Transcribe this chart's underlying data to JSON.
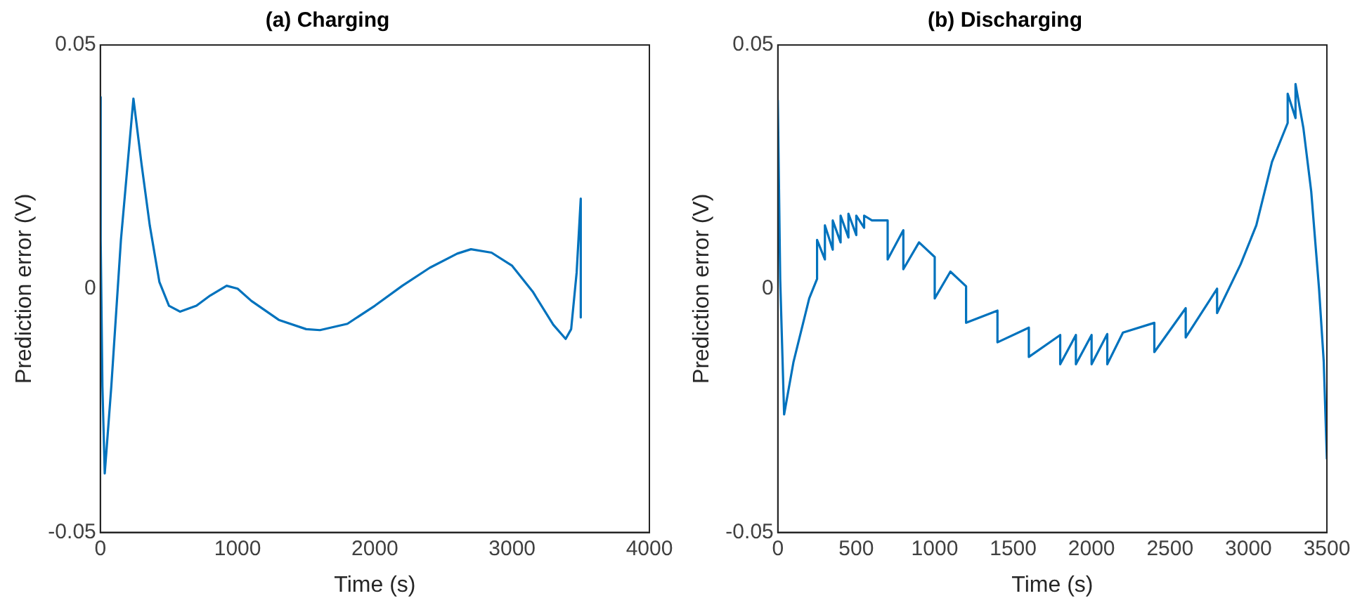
{
  "chart_data": [
    {
      "type": "line",
      "title": "(a) Charging",
      "xlabel": "Time (s)",
      "ylabel": "Prediction error (V)",
      "color": "#0072bd",
      "x": [
        0,
        0,
        5,
        15,
        32,
        80,
        150,
        241,
        300,
        360,
        430,
        500,
        580,
        700,
        800,
        920,
        1000,
        1100,
        1300,
        1500,
        1600,
        1800,
        2000,
        2200,
        2400,
        2600,
        2700,
        2850,
        3000,
        3150,
        3300,
        3390,
        3430,
        3470,
        3500,
        3500
      ],
      "values": [
        0.0393,
        -0.003,
        0.01,
        -0.02,
        -0.0379,
        -0.02,
        0.01,
        0.039,
        0.0256,
        0.013,
        0.0014,
        -0.0035,
        -0.0047,
        -0.0035,
        -0.0014,
        0.0006,
        0,
        -0.0025,
        -0.0064,
        -0.0083,
        -0.0085,
        -0.0072,
        -0.0035,
        0.0006,
        0.0043,
        0.0072,
        0.0081,
        0.0074,
        0.0047,
        -0.0006,
        -0.0074,
        -0.0103,
        -0.0083,
        0.0033,
        0.0185,
        -0.0059
      ],
      "xlim": [
        0,
        4000
      ],
      "xticks": [
        0,
        1000,
        2000,
        3000,
        4000
      ],
      "ylim": [
        -0.05,
        0.05
      ],
      "yticks": [
        -0.05,
        0,
        0.05
      ]
    },
    {
      "type": "line",
      "title": "(b) Discharging",
      "xlabel": "Time (s)",
      "ylabel": "Prediction error (V)",
      "color": "#0072bd",
      "x": [
        0,
        15,
        40,
        100,
        200,
        250,
        250,
        300,
        300,
        350,
        350,
        400,
        400,
        450,
        450,
        500,
        500,
        550,
        550,
        600,
        700,
        700,
        800,
        800,
        900,
        1000,
        1000,
        1100,
        1200,
        1200,
        1400,
        1400,
        1600,
        1600,
        1800,
        1800,
        1900,
        1900,
        2000,
        2000,
        2100,
        2100,
        2200,
        2400,
        2400,
        2600,
        2600,
        2800,
        2800,
        2950,
        3050,
        3150,
        3250,
        3250,
        3300,
        3300,
        3350,
        3400,
        3450,
        3480,
        3500
      ],
      "values": [
        0.0387,
        0.002,
        -0.0258,
        -0.015,
        -0.002,
        0.002,
        0.01,
        0.006,
        0.013,
        0.008,
        0.014,
        0.0095,
        0.015,
        0.0105,
        0.0154,
        0.011,
        0.015,
        0.0125,
        0.015,
        0.014,
        0.014,
        0.006,
        0.012,
        0.004,
        0.0095,
        0.0065,
        -0.002,
        0.0035,
        0.0005,
        -0.007,
        -0.0045,
        -0.011,
        -0.008,
        -0.014,
        -0.0095,
        -0.0155,
        -0.0095,
        -0.0155,
        -0.0095,
        -0.0155,
        -0.0093,
        -0.0155,
        -0.009,
        -0.007,
        -0.013,
        -0.004,
        -0.01,
        0.0,
        -0.005,
        0.005,
        0.013,
        0.026,
        0.034,
        0.04,
        0.035,
        0.042,
        0.033,
        0.02,
        0.0,
        -0.015,
        -0.035
      ],
      "xlim": [
        0,
        3500
      ],
      "xticks": [
        0,
        500,
        1000,
        1500,
        2000,
        2500,
        3000,
        3500
      ],
      "ylim": [
        -0.05,
        0.05
      ],
      "yticks": [
        -0.05,
        0,
        0.05
      ]
    }
  ]
}
